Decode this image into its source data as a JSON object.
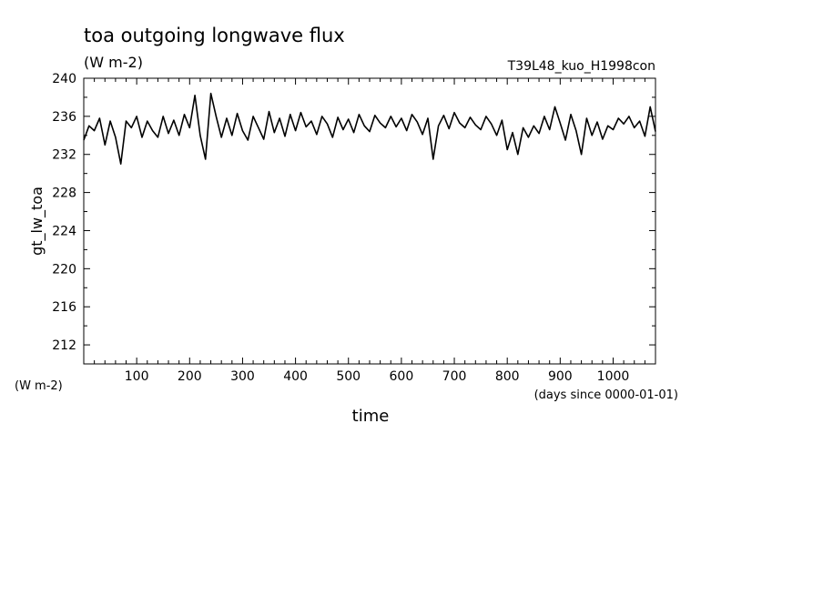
{
  "chart_data": {
    "type": "line",
    "title": "toa outgoing longwave flux",
    "subtitle": "(W m-2)",
    "annotation": "T39L48_kuo_H1998con",
    "xlabel": "time",
    "xunit": "(days since 0000-01-01)",
    "ylabel": "gt_lw_toa",
    "yunit": "(W m-2)",
    "xlim": [
      0,
      1080
    ],
    "ylim": [
      210,
      240
    ],
    "xticks": [
      100,
      200,
      300,
      400,
      500,
      600,
      700,
      800,
      900,
      1000
    ],
    "yticks": [
      212,
      216,
      220,
      224,
      228,
      232,
      236,
      240
    ],
    "grid": false,
    "line_color": "#000000",
    "series": [
      {
        "x": [
          0,
          10,
          20,
          30,
          40,
          50,
          60,
          70,
          80,
          90,
          100,
          110,
          120,
          130,
          140,
          150,
          160,
          170,
          180,
          190,
          200,
          210,
          220,
          230,
          240,
          250,
          260,
          270,
          280,
          290,
          300,
          310,
          320,
          330,
          340,
          350,
          360,
          370,
          380,
          390,
          400,
          410,
          420,
          430,
          440,
          450,
          460,
          470,
          480,
          490,
          500,
          510,
          520,
          530,
          540,
          550,
          560,
          570,
          580,
          590,
          600,
          610,
          620,
          630,
          640,
          650,
          660,
          670,
          680,
          690,
          700,
          710,
          720,
          730,
          740,
          750,
          760,
          770,
          780,
          790,
          800,
          810,
          820,
          830,
          840,
          850,
          860,
          870,
          880,
          890,
          900,
          910,
          920,
          930,
          940,
          950,
          960,
          970,
          980,
          990,
          1000,
          1010,
          1020,
          1030,
          1040,
          1050,
          1060,
          1070,
          1080
        ],
        "values": [
          233.5,
          235.0,
          234.5,
          235.8,
          233.0,
          235.5,
          233.8,
          231.0,
          235.5,
          234.8,
          236.0,
          233.8,
          235.5,
          234.5,
          233.8,
          236.0,
          234.2,
          235.6,
          234.0,
          236.2,
          234.8,
          238.2,
          234.0,
          231.5,
          238.4,
          236.0,
          233.8,
          235.8,
          234.0,
          236.3,
          234.5,
          233.5,
          236.0,
          234.8,
          233.6,
          236.5,
          234.3,
          235.8,
          233.9,
          236.2,
          234.5,
          236.4,
          234.9,
          235.5,
          234.1,
          236.0,
          235.2,
          233.8,
          235.9,
          234.6,
          235.7,
          234.3,
          236.2,
          235.0,
          234.4,
          236.1,
          235.3,
          234.8,
          236.0,
          234.9,
          235.8,
          234.5,
          236.2,
          235.4,
          234.1,
          235.8,
          231.5,
          235.0,
          236.1,
          234.7,
          236.4,
          235.3,
          234.8,
          235.9,
          235.1,
          234.6,
          236.0,
          235.2,
          234.0,
          235.6,
          232.5,
          234.3,
          232.0,
          234.8,
          233.8,
          235.0,
          234.2,
          236.0,
          234.6,
          237.0,
          235.3,
          233.5,
          236.2,
          234.5,
          232.0,
          235.8,
          234.0,
          235.4,
          233.6,
          235.0,
          234.6,
          235.8,
          235.2,
          236.0,
          234.8,
          235.5,
          233.9,
          237.0,
          234.4
        ]
      }
    ]
  }
}
